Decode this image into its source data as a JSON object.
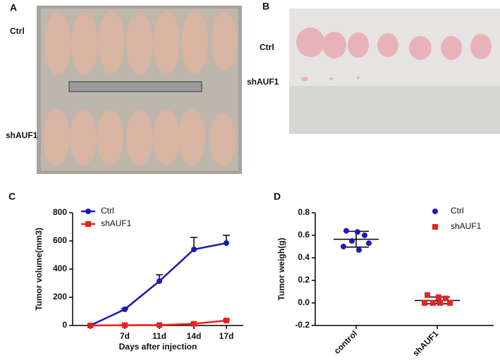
{
  "photos": [
    {
      "panel": "A",
      "labels": [
        "Ctrl",
        "shAUF1"
      ]
    },
    {
      "panel": "B",
      "labels": [
        "Ctrl",
        "shAUF1"
      ]
    }
  ],
  "chart_data": [
    {
      "panel": "C",
      "type": "line",
      "xlabel": "Days after injection",
      "ylabel": "Tumor volume(mm3)",
      "categories": [
        null,
        "7d",
        "11d",
        "14d",
        "17d"
      ],
      "ylim": [
        0,
        800
      ],
      "yticks": [
        0,
        200,
        400,
        600,
        800
      ],
      "legend": "upper-left",
      "series": [
        {
          "name": "Ctrl",
          "color": "#1a1ab8",
          "marker": "circle",
          "values": [
            0,
            115,
            315,
            540,
            585
          ],
          "errors": [
            0,
            5,
            45,
            85,
            55
          ]
        },
        {
          "name": "shAUF1",
          "color": "#e8231f",
          "marker": "square",
          "values": [
            0,
            2,
            3,
            12,
            35
          ],
          "errors": [
            0,
            2,
            3,
            5,
            5
          ]
        }
      ]
    },
    {
      "panel": "D",
      "type": "scatter",
      "ylabel": "Tumor weigh(g)",
      "categories": [
        "control",
        "shAUF1"
      ],
      "ylim": [
        -0.2,
        0.8
      ],
      "yticks": [
        -0.2,
        {
          "value": 0,
          "label": "0.0"
        },
        0.2,
        0.4,
        0.6,
        0.8
      ],
      "legend": "upper-right",
      "series": [
        {
          "name": "Ctrl",
          "color": "#1a1ab8",
          "marker": "circle",
          "values": [
            0.64,
            0.63,
            0.6,
            0.55,
            0.53,
            0.5,
            0.47
          ],
          "mean": 0.565,
          "sd": 0.07
        },
        {
          "name": "shAUF1",
          "color": "#e8231f",
          "marker": "square",
          "values": [
            0.07,
            0.05,
            0.04,
            0.0,
            0.0,
            0.0,
            0.0
          ],
          "mean": 0.022,
          "sd": 0.03
        }
      ]
    }
  ]
}
